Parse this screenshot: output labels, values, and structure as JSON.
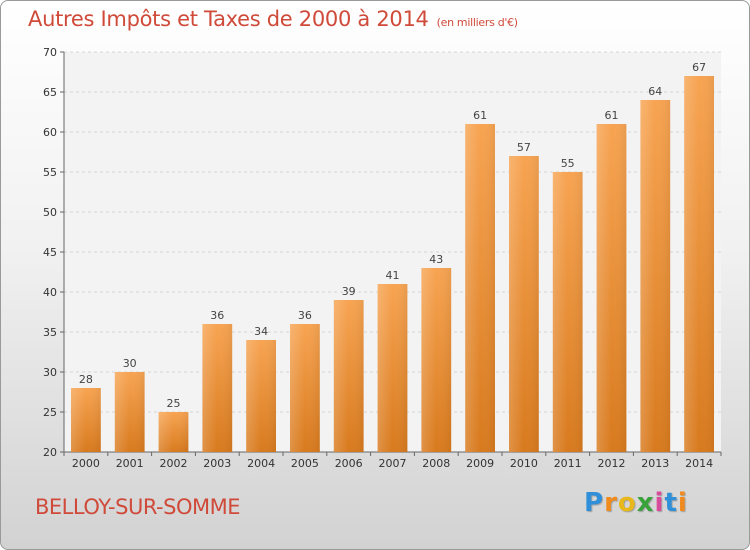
{
  "title": "Autres Impôts et Taxes de 2000 à 2014",
  "unit": "(en milliers d'€)",
  "location": "BELLOY-SUR-SOMME",
  "logo": {
    "letters": [
      "P",
      "r",
      "o",
      "x",
      "i",
      "t",
      "i"
    ],
    "colors": [
      "#2f8fd8",
      "#f08a1c",
      "#e8b81a",
      "#3aa23a",
      "#d84a9a",
      "#2f8fd8",
      "#f08a1c"
    ]
  },
  "colors": {
    "bar": "#f0902e",
    "bar_dark": "#e07a1c",
    "text_red": "#d04a3a"
  },
  "chart_data": {
    "type": "bar",
    "categories": [
      "2000",
      "2001",
      "2002",
      "2003",
      "2004",
      "2005",
      "2006",
      "2007",
      "2008",
      "2009",
      "2010",
      "2011",
      "2012",
      "2013",
      "2014"
    ],
    "values": [
      28,
      30,
      25,
      36,
      34,
      36,
      39,
      41,
      43,
      61,
      57,
      55,
      61,
      64,
      67
    ],
    "ylim": [
      20,
      70
    ],
    "yticks": [
      20,
      25,
      30,
      35,
      40,
      45,
      50,
      55,
      60,
      65,
      70
    ],
    "grid": true,
    "xlabel": "",
    "ylabel": ""
  }
}
